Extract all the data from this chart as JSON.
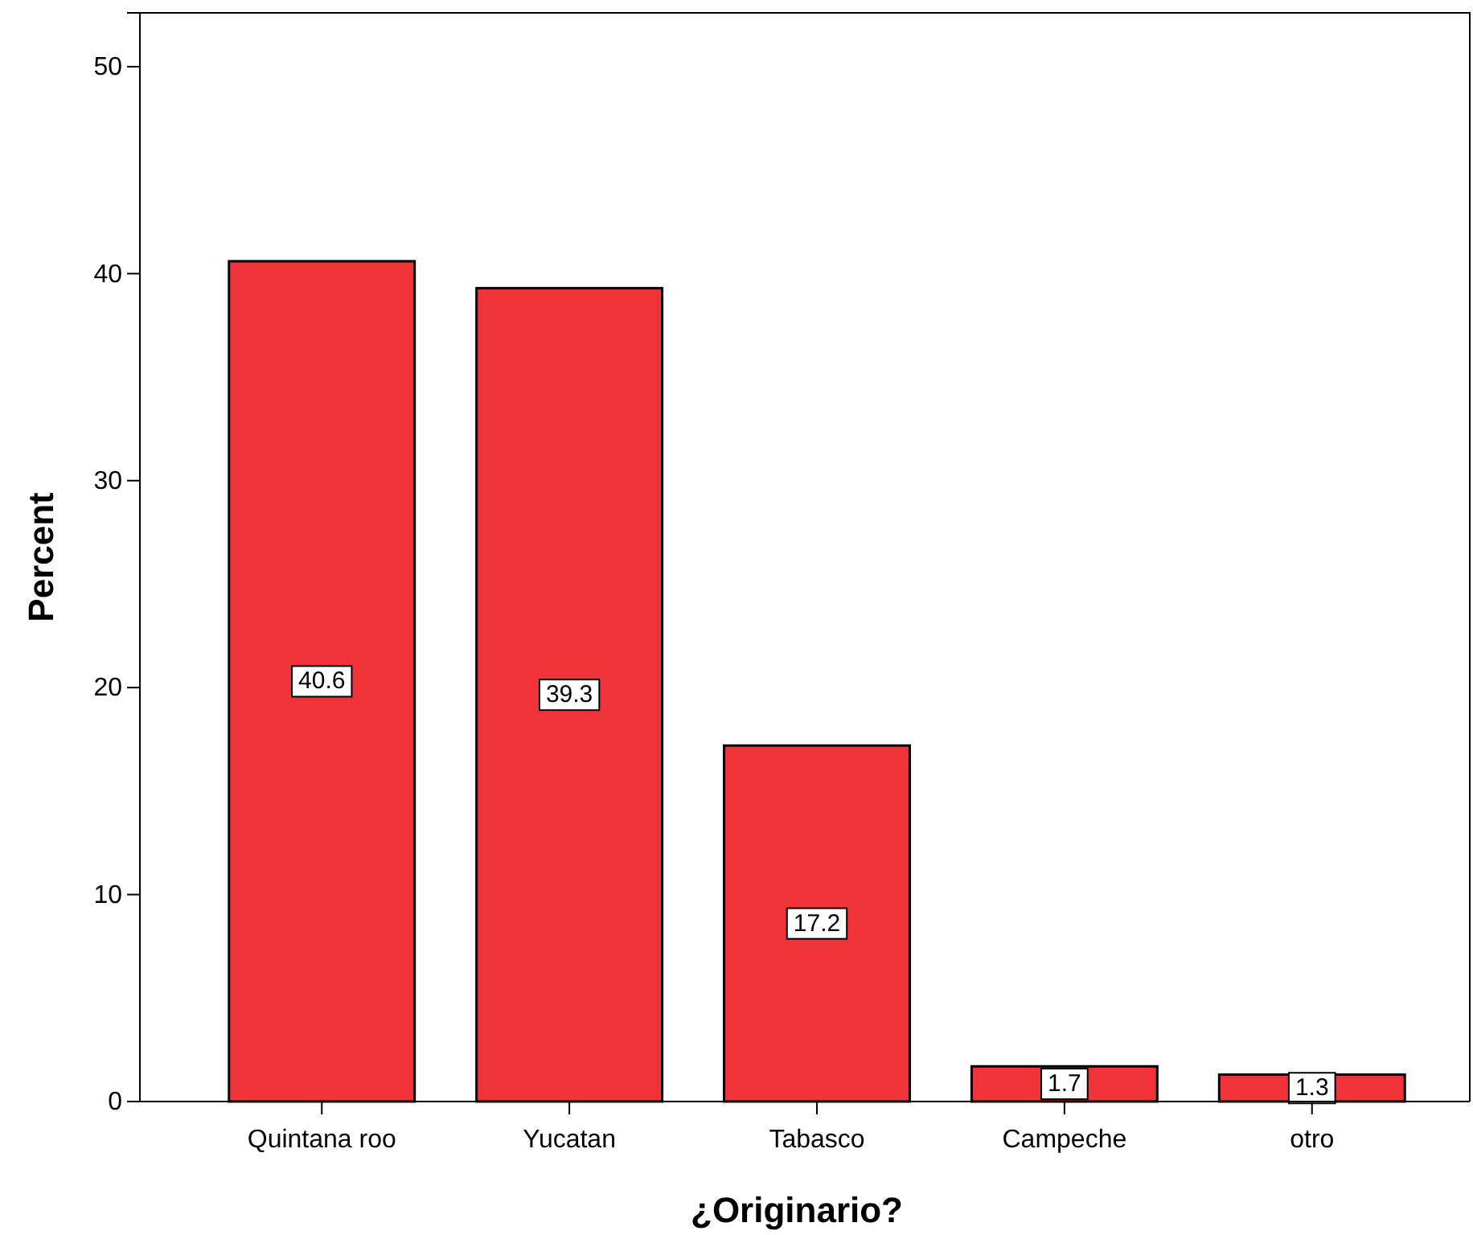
{
  "chart_data": {
    "type": "bar",
    "xlabel": "¿Originario?",
    "ylabel": "Percent",
    "categories": [
      "Quintana roo",
      "Yucatan",
      "Tabasco",
      "Campeche",
      "otro"
    ],
    "values": [
      40.6,
      39.3,
      17.2,
      1.7,
      1.3
    ],
    "color": "#ef3338",
    "ylim": [
      0,
      52.6
    ],
    "yticks": [
      0,
      10,
      20,
      30,
      40,
      50
    ],
    "grid": false,
    "data_labels": true
  }
}
